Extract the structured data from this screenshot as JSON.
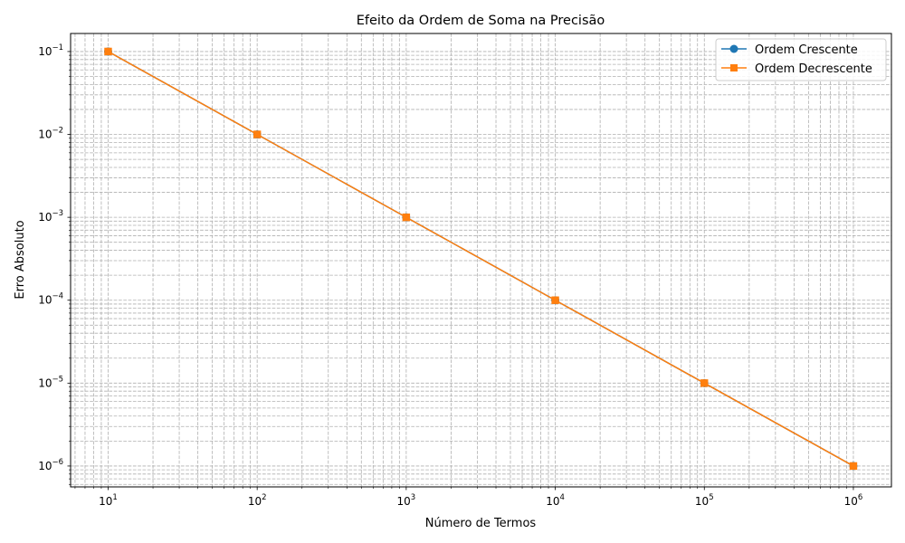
{
  "chart_data": {
    "type": "line",
    "title": "Efeito da Ordem de Soma na Precisão",
    "xlabel": "Número de Termos",
    "ylabel": "Erro Absoluto",
    "x_scale": "log",
    "y_scale": "log",
    "xlim": [
      5.6,
      1800000
    ],
    "ylim": [
      5.6e-07,
      0.165
    ],
    "grid": "both, dashed",
    "legend_position": "top-right",
    "x_ticks": [
      {
        "value": 10,
        "base": "10",
        "exp": "1"
      },
      {
        "value": 100,
        "base": "10",
        "exp": "2"
      },
      {
        "value": 1000,
        "base": "10",
        "exp": "3"
      },
      {
        "value": 10000,
        "base": "10",
        "exp": "4"
      },
      {
        "value": 100000,
        "base": "10",
        "exp": "5"
      },
      {
        "value": 1000000,
        "base": "10",
        "exp": "6"
      }
    ],
    "y_ticks": [
      {
        "value": 0.1,
        "base": "10",
        "exp": "−1"
      },
      {
        "value": 0.01,
        "base": "10",
        "exp": "−2"
      },
      {
        "value": 0.001,
        "base": "10",
        "exp": "−3"
      },
      {
        "value": 0.0001,
        "base": "10",
        "exp": "−4"
      },
      {
        "value": 1e-05,
        "base": "10",
        "exp": "−5"
      },
      {
        "value": 1e-06,
        "base": "10",
        "exp": "−6"
      }
    ],
    "x": [
      10,
      100,
      1000,
      10000,
      100000,
      1000000
    ],
    "series": [
      {
        "name": "Ordem Crescente",
        "marker": "circle",
        "color": "#1f77b4",
        "values": [
          0.1,
          0.01,
          0.001,
          0.0001,
          1e-05,
          1e-06
        ]
      },
      {
        "name": "Ordem Decrescente",
        "marker": "square",
        "color": "#ff7f0e",
        "values": [
          0.1,
          0.01,
          0.001,
          0.0001,
          1e-05,
          1e-06
        ]
      }
    ]
  }
}
